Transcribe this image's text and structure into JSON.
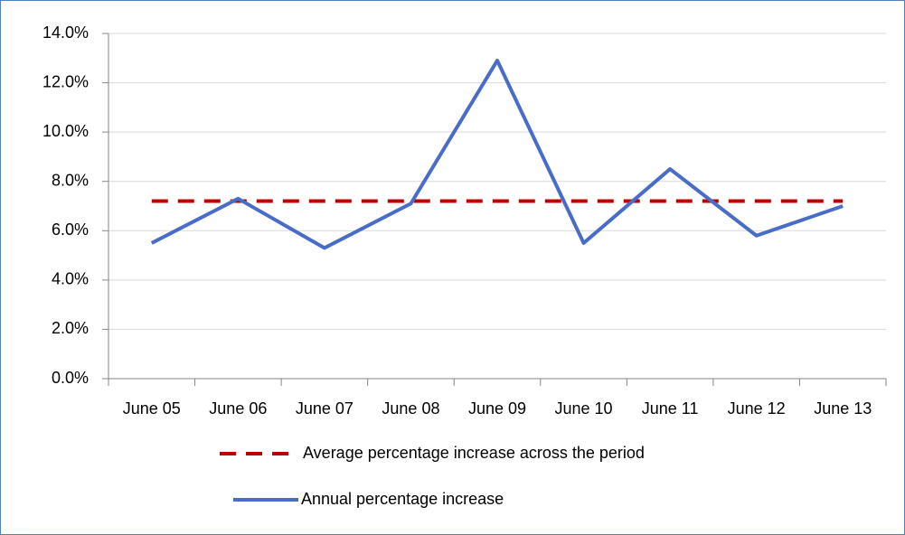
{
  "chart_data": {
    "type": "line",
    "categories": [
      "June 05",
      "June 06",
      "June 07",
      "June 08",
      "June 09",
      "June 10",
      "June 11",
      "June 12",
      "June 13"
    ],
    "series": [
      {
        "name": "Average percentage increase across the period",
        "color": "#c00000",
        "dashed": true,
        "values": [
          7.2,
          7.2,
          7.2,
          7.2,
          7.2,
          7.2,
          7.2,
          7.2,
          7.2
        ]
      },
      {
        "name": "Annual percentage increase",
        "color": "#4a6cc9",
        "dashed": false,
        "values": [
          5.5,
          7.3,
          5.3,
          7.1,
          12.9,
          5.5,
          8.5,
          5.8,
          7.0
        ]
      }
    ],
    "ylim": [
      0,
      14
    ],
    "yticks": [
      {
        "value": 0,
        "label": "0.0%"
      },
      {
        "value": 2,
        "label": "2.0%"
      },
      {
        "value": 4,
        "label": "4.0%"
      },
      {
        "value": 6,
        "label": "6.0%"
      },
      {
        "value": 8,
        "label": "8.0%"
      },
      {
        "value": 10,
        "label": "10.0%"
      },
      {
        "value": 12,
        "label": "12.0%"
      },
      {
        "value": 14,
        "label": "14.0%"
      }
    ],
    "grid": true
  }
}
